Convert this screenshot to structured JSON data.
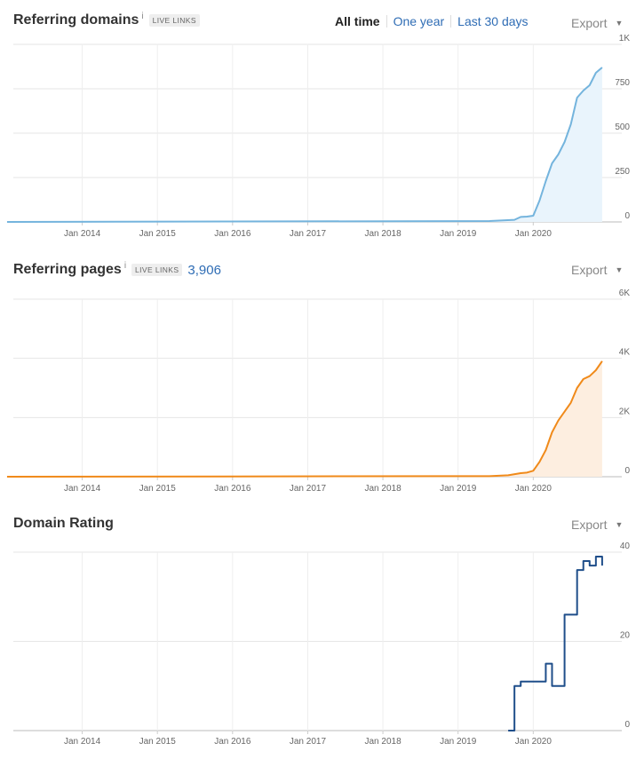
{
  "range_selector": {
    "all_time": "All time",
    "one_year": "One year",
    "last_30_days": "Last 30 days"
  },
  "export_label": "Export",
  "colors": {
    "domains": "#74b4dd",
    "pages": "#f08a1a",
    "rating": "#1f4e8a",
    "link": "#2f6db5"
  },
  "chart_data": [
    {
      "id": "referring-domains",
      "type": "area",
      "title": "Referring domains",
      "info_icon": "i",
      "badge": "LIVE LINKS",
      "x_tick_labels": [
        "Jan 2014",
        "Jan 2015",
        "Jan 2016",
        "Jan 2017",
        "Jan 2018",
        "Jan 2019",
        "Jan 2020"
      ],
      "y_tick_labels": [
        "0",
        "250",
        "500",
        "750",
        "1K"
      ],
      "ylim": [
        0,
        1000
      ],
      "grid": true,
      "series": [
        {
          "x": [
            "2013-01",
            "2019-06",
            "2019-10",
            "2019-11",
            "2019-12",
            "2020-01",
            "2020-02",
            "2020-03",
            "2020-04",
            "2020-05",
            "2020-06",
            "2020-07",
            "2020-08",
            "2020-09",
            "2020-10",
            "2020-11",
            "2020-12"
          ],
          "y": [
            0,
            5,
            12,
            28,
            30,
            35,
            120,
            230,
            330,
            380,
            450,
            550,
            700,
            740,
            770,
            840,
            870
          ]
        }
      ]
    },
    {
      "id": "referring-pages",
      "type": "area",
      "title": "Referring pages",
      "info_icon": "i",
      "badge": "LIVE LINKS",
      "count": "3,906",
      "x_tick_labels": [
        "Jan 2014",
        "Jan 2015",
        "Jan 2016",
        "Jan 2017",
        "Jan 2018",
        "Jan 2019",
        "Jan 2020"
      ],
      "y_tick_labels": [
        "0",
        "2K",
        "4K",
        "6K"
      ],
      "ylim": [
        0,
        6000
      ],
      "grid": true,
      "series": [
        {
          "x": [
            "2013-01",
            "2019-06",
            "2019-09",
            "2019-11",
            "2019-12",
            "2020-01",
            "2020-02",
            "2020-03",
            "2020-04",
            "2020-05",
            "2020-06",
            "2020-07",
            "2020-08",
            "2020-09",
            "2020-10",
            "2020-11",
            "2020-12"
          ],
          "y": [
            0,
            20,
            50,
            120,
            140,
            200,
            500,
            900,
            1500,
            1900,
            2200,
            2500,
            3000,
            3300,
            3400,
            3600,
            3906
          ]
        }
      ]
    },
    {
      "id": "domain-rating",
      "type": "line",
      "title": "Domain Rating",
      "x_tick_labels": [
        "Jan 2014",
        "Jan 2015",
        "Jan 2016",
        "Jan 2017",
        "Jan 2018",
        "Jan 2019",
        "Jan 2020"
      ],
      "y_tick_labels": [
        "0",
        "20",
        "40"
      ],
      "ylim": [
        0,
        40
      ],
      "grid": true,
      "series": [
        {
          "step": true,
          "x": [
            "2019-09",
            "2019-10",
            "2019-11",
            "2020-01",
            "2020-03",
            "2020-04",
            "2020-06",
            "2020-07",
            "2020-08",
            "2020-09",
            "2020-10",
            "2020-11",
            "2020-12"
          ],
          "y": [
            0,
            10,
            11,
            11,
            15,
            10,
            26,
            26,
            36,
            38,
            37,
            39,
            37
          ]
        }
      ]
    }
  ]
}
